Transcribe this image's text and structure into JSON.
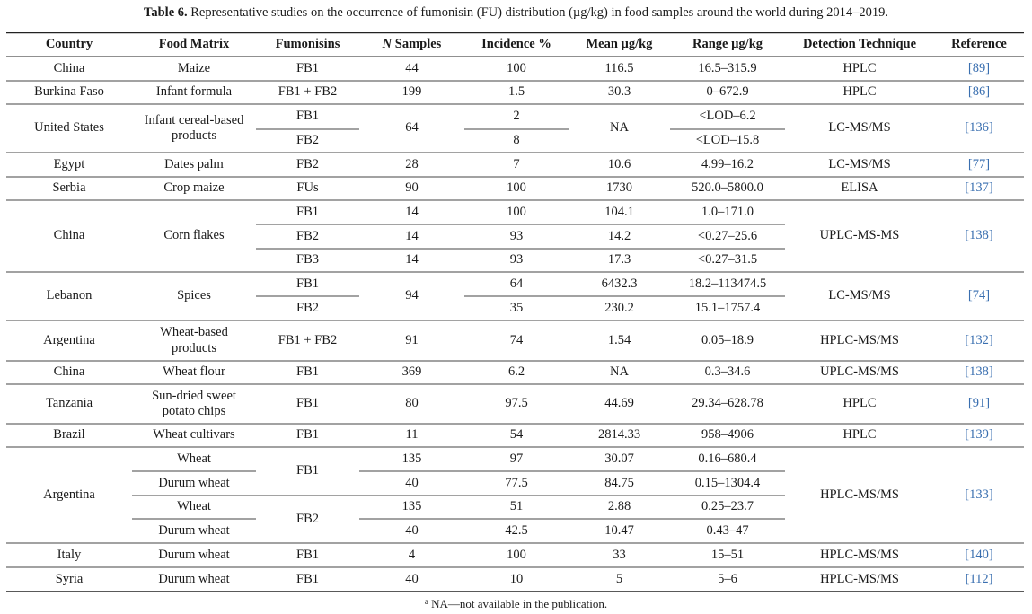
{
  "caption": {
    "label": "Table 6.",
    "text": "Representative studies on the occurrence of fumonisin (FU) distribution (µg/kg) in food samples around the world during 2014–2019."
  },
  "headers": {
    "country": "Country",
    "food_matrix": "Food Matrix",
    "fumonisins": "Fumonisins",
    "n_samples_n": "N",
    "n_samples_rest": " Samples",
    "incidence": "Incidence %",
    "mean": "Mean µg/kg",
    "range": "Range µg/kg",
    "detection": "Detection Technique",
    "reference": "Reference"
  },
  "rows": {
    "china1": {
      "country": "China",
      "food": "Maize",
      "fum": "FB1",
      "n": "44",
      "inc": "100",
      "mean": "116.5",
      "range": "16.5–315.9",
      "tech": "HPLC",
      "ref": "[89]"
    },
    "burkina": {
      "country": "Burkina Faso",
      "food": "Infant formula",
      "fum": "FB1 + FB2",
      "n": "199",
      "inc": "1.5",
      "mean": "30.3",
      "range": "0–672.9",
      "tech": "HPLC",
      "ref": "[86]"
    },
    "us": {
      "country": "United States",
      "food": "Infant cereal-based products",
      "fum1": "FB1",
      "fum2": "FB2",
      "n": "64",
      "inc1": "2",
      "inc2": "8",
      "mean": "NA",
      "range1": "<LOD–6.2",
      "range2": "<LOD–15.8",
      "tech": "LC-MS/MS",
      "ref": "[136]"
    },
    "egypt": {
      "country": "Egypt",
      "food": "Dates palm",
      "fum": "FB2",
      "n": "28",
      "inc": "7",
      "mean": "10.6",
      "range": "4.99–16.2",
      "tech": "LC-MS/MS",
      "ref": "[77]"
    },
    "serbia": {
      "country": "Serbia",
      "food": "Crop maize",
      "fum": "FUs",
      "n": "90",
      "inc": "100",
      "mean": "1730",
      "range": "520.0–5800.0",
      "tech": "ELISA",
      "ref": "[137]"
    },
    "china2": {
      "country": "China",
      "food": "Corn flakes",
      "fum1": "FB1",
      "fum2": "FB2",
      "fum3": "FB3",
      "n1": "14",
      "n2": "14",
      "n3": "14",
      "inc1": "100",
      "inc2": "93",
      "inc3": "93",
      "mean1": "104.1",
      "mean2": "14.2",
      "mean3": "17.3",
      "range1": "1.0–171.0",
      "range2": "<0.27–25.6",
      "range3": "<0.27–31.5",
      "tech": "UPLC-MS-MS",
      "ref": "[138]"
    },
    "lebanon": {
      "country": "Lebanon",
      "food": "Spices",
      "fum1": "FB1",
      "fum2": "FB2",
      "n": "94",
      "inc1": "64",
      "inc2": "35",
      "mean1": "6432.3",
      "mean2": "230.2",
      "range1": "18.2–113474.5",
      "range2": "15.1–1757.4",
      "tech": "LC-MS/MS",
      "ref": "[74]"
    },
    "argentina1": {
      "country": "Argentina",
      "food": "Wheat-based products",
      "fum": "FB1 + FB2",
      "n": "91",
      "inc": "74",
      "mean": "1.54",
      "range": "0.05–18.9",
      "tech": "HPLC-MS/MS",
      "ref": "[132]"
    },
    "china3": {
      "country": "China",
      "food": "Wheat flour",
      "fum": "FB1",
      "n": "369",
      "inc": "6.2",
      "mean": "NA",
      "range": "0.3–34.6",
      "tech": "UPLC-MS/MS",
      "ref": "[138]"
    },
    "tanzania": {
      "country": "Tanzania",
      "food": "Sun-dried sweet potato chips",
      "fum": "FB1",
      "n": "80",
      "inc": "97.5",
      "mean": "44.69",
      "range": "29.34–628.78",
      "tech": "HPLC",
      "ref": "[91]"
    },
    "brazil": {
      "country": "Brazil",
      "food": "Wheat cultivars",
      "fum": "FB1",
      "n": "11",
      "inc": "54",
      "mean": "2814.33",
      "range": "958–4906",
      "tech": "HPLC",
      "ref": "[139]"
    },
    "argentina2": {
      "country": "Argentina",
      "food1": "Wheat",
      "food2": "Durum wheat",
      "food3": "Wheat",
      "food4": "Durum wheat",
      "fum1": "FB1",
      "fum2": "FB2",
      "n1": "135",
      "n2": "40",
      "n3": "135",
      "n4": "40",
      "inc1": "97",
      "inc2": "77.5",
      "inc3": "51",
      "inc4": "42.5",
      "mean1": "30.07",
      "mean2": "84.75",
      "mean3": "2.88",
      "mean4": "10.47",
      "range1": "0.16–680.4",
      "range2": "0.15–1304.4",
      "range3": "0.25–23.7",
      "range4": "0.43–47",
      "tech": "HPLC-MS/MS",
      "ref": "[133]"
    },
    "italy": {
      "country": "Italy",
      "food": "Durum wheat",
      "fum": "FB1",
      "n": "4",
      "inc": "100",
      "mean": "33",
      "range": "15–51",
      "tech": "HPLC-MS/MS",
      "ref": "[140]"
    },
    "syria": {
      "country": "Syria",
      "food": "Durum wheat",
      "fum": "FB1",
      "n": "40",
      "inc": "10",
      "mean": "5",
      "range": "5–6",
      "tech": "HPLC-MS/MS",
      "ref": "[112]"
    }
  },
  "footnote": {
    "marker": "a",
    "text": " NA—not available in the publication."
  }
}
